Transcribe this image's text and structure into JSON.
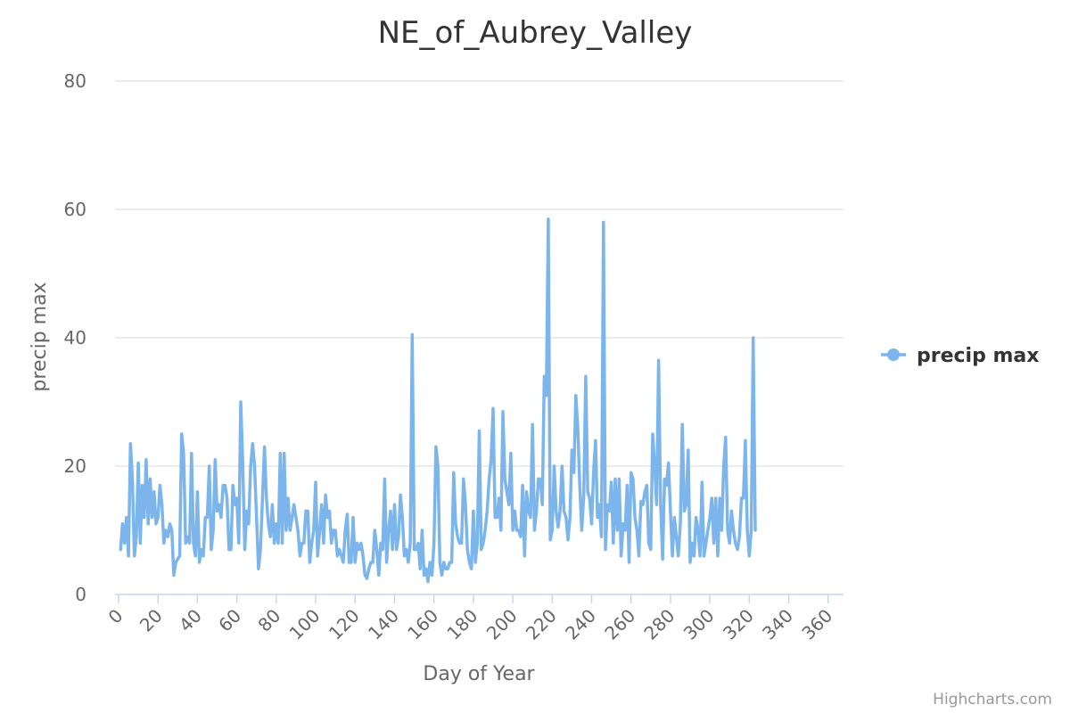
{
  "chart_data": {
    "type": "line",
    "title": "NE_of_Aubrey_Valley",
    "xlabel": "Day of Year",
    "ylabel": "precip max",
    "xlim": [
      0,
      366
    ],
    "ylim": [
      0,
      80
    ],
    "x_ticks": [
      "0",
      "20",
      "40",
      "60",
      "80",
      "100",
      "120",
      "140",
      "160",
      "180",
      "200",
      "220",
      "240",
      "260",
      "280",
      "300",
      "320",
      "340",
      "360"
    ],
    "y_ticks": [
      "0",
      "20",
      "40",
      "60",
      "80"
    ],
    "grid": true,
    "legend_position": "right",
    "series": [
      {
        "name": "precip max",
        "color": "#7cb5ec",
        "x_start": 1,
        "values": [
          7,
          11,
          8,
          12,
          6,
          23.5,
          18,
          6,
          9,
          20.5,
          8,
          17,
          12,
          21,
          11,
          18,
          12,
          16,
          11,
          12,
          17,
          14,
          8,
          10,
          9,
          11,
          10,
          3,
          5,
          5.5,
          6,
          25,
          22,
          8,
          9,
          8,
          22,
          8,
          6,
          16,
          5,
          7,
          6,
          12,
          12,
          20,
          7,
          10,
          21,
          13,
          14,
          12,
          17,
          17,
          15,
          7,
          7,
          17,
          14,
          15,
          8,
          30,
          20,
          7,
          13,
          11,
          20,
          23.5,
          20,
          12,
          4,
          7,
          15,
          23,
          15,
          11,
          9,
          14,
          8,
          11,
          8,
          22,
          8,
          22,
          10,
          15,
          10,
          12,
          14,
          12,
          10,
          6,
          8,
          8,
          13,
          13,
          5,
          8,
          10,
          17.5,
          6,
          10,
          14,
          8,
          15.5,
          12,
          13,
          8,
          10,
          10,
          6,
          7,
          6,
          5,
          10,
          12.5,
          5,
          5,
          12,
          5,
          8,
          7,
          8,
          6,
          3,
          2.5,
          4,
          5,
          5,
          10,
          7,
          3,
          8,
          7,
          18,
          5,
          10,
          13,
          7,
          14,
          7,
          9,
          15.5,
          12,
          6,
          7,
          5,
          8,
          40.5,
          7,
          7,
          8,
          4,
          10,
          3,
          4,
          2,
          5,
          3,
          8,
          23,
          20,
          5,
          3,
          5,
          4,
          4,
          5,
          5,
          19,
          11,
          9,
          8,
          8,
          18,
          14,
          7,
          5,
          4,
          13,
          5,
          8,
          25.5,
          7,
          8,
          10,
          13,
          18,
          21,
          29,
          12,
          12,
          15,
          10,
          28.5,
          18,
          16,
          14,
          22,
          10,
          13,
          10,
          10,
          9,
          17,
          6,
          16,
          13,
          12,
          26.5,
          10,
          13,
          18,
          18,
          14,
          34,
          31,
          58.5,
          8.5,
          10,
          20,
          13,
          10.5,
          13,
          20,
          13,
          12,
          8.5,
          12,
          22.5,
          19,
          31,
          26,
          17,
          10,
          15.5,
          34,
          16,
          15,
          11,
          19,
          24,
          12,
          14,
          9,
          58,
          7,
          14,
          13,
          17.5,
          8,
          18,
          10,
          18,
          6,
          11,
          10,
          17,
          5,
          19,
          18,
          12,
          10,
          6,
          14.5,
          14,
          16,
          17,
          8,
          7,
          25,
          20,
          14,
          36.5,
          14,
          5.5,
          18,
          17,
          20.5,
          13,
          6,
          12,
          9,
          6,
          11,
          26.5,
          13,
          14,
          22.5,
          5,
          8,
          6,
          12,
          10,
          6,
          17.5,
          6,
          8,
          10,
          12,
          15,
          8,
          15,
          6,
          15,
          10,
          20,
          24.5,
          10,
          8,
          13,
          10,
          8,
          7,
          9,
          15,
          15,
          24,
          10,
          6,
          10,
          40,
          10
        ]
      }
    ],
    "credits": "Highcharts.com"
  }
}
